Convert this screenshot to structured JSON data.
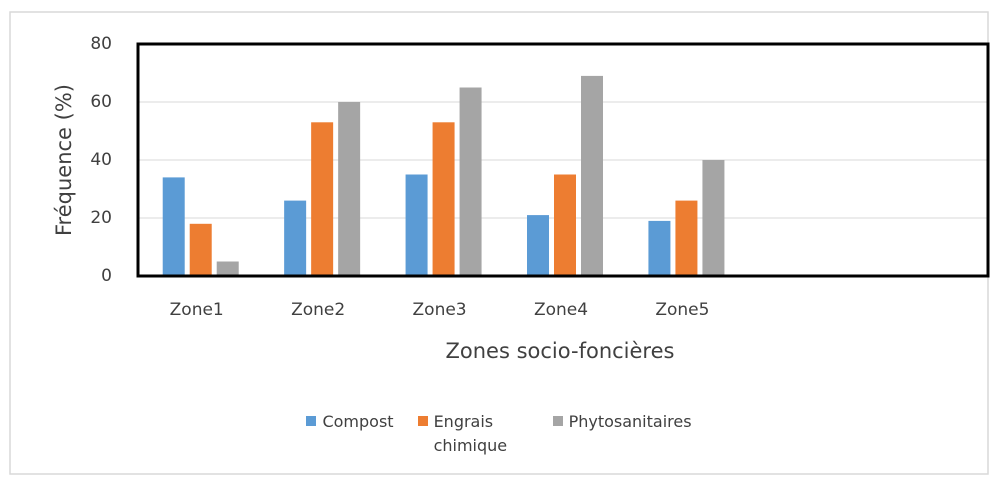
{
  "chart_data": {
    "type": "bar",
    "ylabel": "Fréquence (%)",
    "xlabel": "Zones socio-foncières",
    "categories": [
      "Zone1",
      "Zone2",
      "Zone3",
      "Zone4",
      "Zone5",
      null,
      null
    ],
    "series": [
      {
        "name": "Compost",
        "color": "#5b9bd5",
        "values": [
          34,
          26,
          35,
          21,
          19,
          null,
          null
        ]
      },
      {
        "name": "Engrais chimique",
        "color": "#ed7d31",
        "values": [
          18,
          53,
          53,
          35,
          26,
          null,
          null
        ]
      },
      {
        "name": "Phytosanitaires",
        "color": "#a5a5a5",
        "values": [
          5,
          60,
          65,
          69,
          40,
          null,
          null
        ]
      }
    ],
    "ylim": [
      0,
      80
    ],
    "yticks": [
      0,
      20,
      40,
      60,
      80
    ],
    "grid": true,
    "legend": "bottom"
  }
}
